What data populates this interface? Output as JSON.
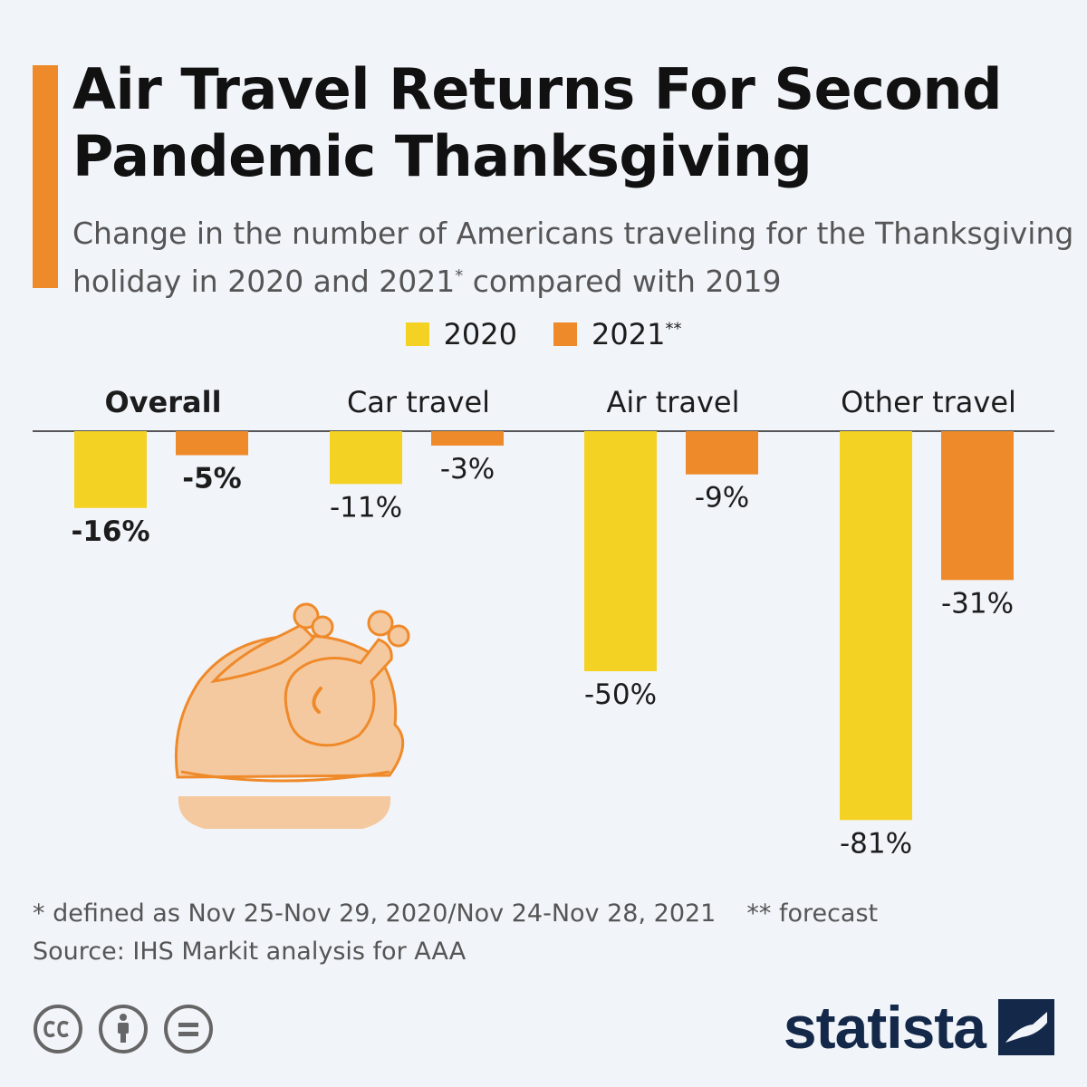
{
  "header": {
    "title": "Air Travel Returns For Second Pandemic Thanksgiving",
    "subtitle_part1": "Change in the number of Americans traveling for the Thanksgiving holiday in 2020 and 2021",
    "subtitle_mark": "*",
    "subtitle_part2": " compared with 2019"
  },
  "legend": {
    "items": [
      {
        "label": "2020",
        "color": "#f4d224"
      },
      {
        "label": "2021",
        "mark": "**",
        "color": "#ef8a2a"
      }
    ]
  },
  "chart_data": {
    "type": "bar",
    "categories": [
      "Overall",
      "Car travel",
      "Air travel",
      "Other travel"
    ],
    "emphasized_category": "Overall",
    "series": [
      {
        "name": "2020",
        "values": [
          -16,
          -11,
          -50,
          -81
        ],
        "labels": [
          "-16%",
          "-11%",
          "-50%",
          "-81%"
        ],
        "color": "#f4d224"
      },
      {
        "name": "2021**",
        "values": [
          -5,
          -3,
          -9,
          -31
        ],
        "labels": [
          "-5%",
          "-3%",
          "-9%",
          "-31%"
        ],
        "color": "#ef8a2a"
      }
    ],
    "ylim": [
      -85,
      0
    ],
    "bold_labels_for": [
      "Overall"
    ]
  },
  "illustration": {
    "icon": "roast-turkey-icon",
    "color": "#f5c9a0",
    "outline_color": "#ef8a2a"
  },
  "footer": {
    "note_defined": "* defined as Nov 25-Nov 29, 2020/Nov 24-Nov 28, 2021",
    "note_forecast": "** forecast",
    "source": "Source: IHS Markit analysis for AAA",
    "license_icons": [
      "cc-icon",
      "attribution-icon",
      "no-derivatives-icon"
    ],
    "brand": "statista"
  }
}
